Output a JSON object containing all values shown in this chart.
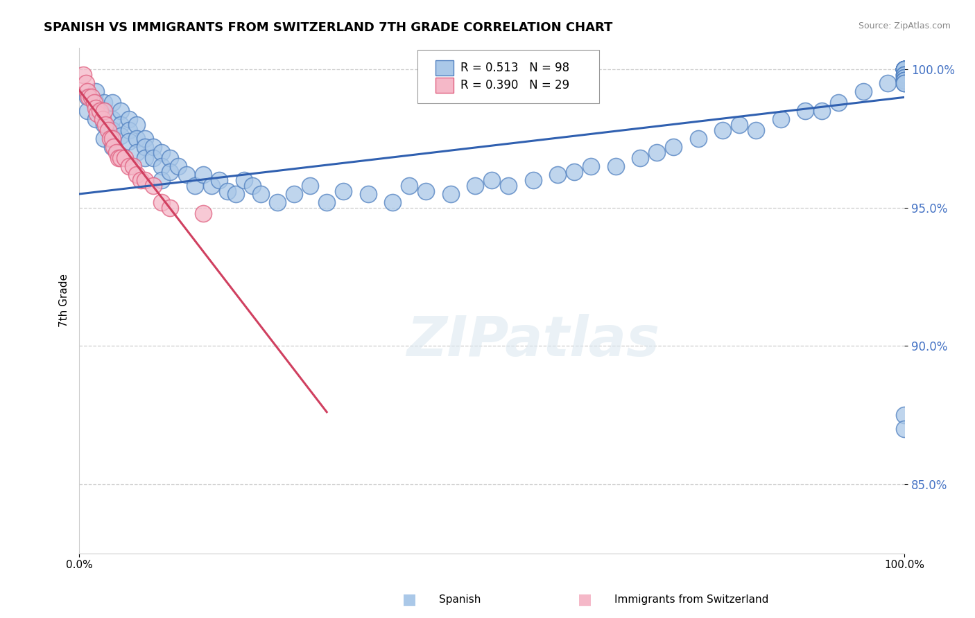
{
  "title": "SPANISH VS IMMIGRANTS FROM SWITZERLAND 7TH GRADE CORRELATION CHART",
  "source": "Source: ZipAtlas.com",
  "legend_label_blue": "Spanish",
  "legend_label_pink": "Immigrants from Switzerland",
  "ylabel": "7th Grade",
  "xlim": [
    0.0,
    1.0
  ],
  "ylim": [
    0.825,
    1.008
  ],
  "yticks": [
    0.85,
    0.9,
    0.95,
    1.0
  ],
  "ytick_labels": [
    "85.0%",
    "90.0%",
    "95.0%",
    "100.0%"
  ],
  "xticks": [
    0.0,
    1.0
  ],
  "xtick_labels": [
    "0.0%",
    "100.0%"
  ],
  "legend_r_blue": "R = 0.513",
  "legend_n_blue": "N = 98",
  "legend_r_pink": "R = 0.390",
  "legend_n_pink": "N = 29",
  "blue_face_color": "#aac8e8",
  "pink_face_color": "#f5b8c8",
  "blue_edge_color": "#5080c0",
  "pink_edge_color": "#e06080",
  "blue_line_color": "#3060b0",
  "pink_line_color": "#d04060",
  "watermark_text": "ZIPatlas",
  "blue_scatter_x": [
    0.01,
    0.01,
    0.02,
    0.02,
    0.02,
    0.03,
    0.03,
    0.03,
    0.03,
    0.04,
    0.04,
    0.04,
    0.04,
    0.05,
    0.05,
    0.05,
    0.06,
    0.06,
    0.06,
    0.07,
    0.07,
    0.07,
    0.08,
    0.08,
    0.08,
    0.09,
    0.09,
    0.1,
    0.1,
    0.1,
    0.11,
    0.11,
    0.12,
    0.13,
    0.14,
    0.15,
    0.16,
    0.17,
    0.18,
    0.19,
    0.2,
    0.21,
    0.22,
    0.24,
    0.26,
    0.28,
    0.3,
    0.32,
    0.35,
    0.38,
    0.4,
    0.42,
    0.45,
    0.48,
    0.5,
    0.52,
    0.55,
    0.58,
    0.6,
    0.62,
    0.65,
    0.68,
    0.7,
    0.72,
    0.75,
    0.78,
    0.8,
    0.82,
    0.85,
    0.88,
    0.9,
    0.92,
    0.95,
    0.98,
    1.0,
    1.0,
    1.0,
    1.0,
    1.0,
    1.0,
    1.0,
    1.0,
    1.0,
    1.0,
    1.0,
    1.0,
    1.0,
    1.0,
    1.0,
    1.0,
    1.0,
    1.0,
    1.0,
    1.0,
    1.0,
    1.0,
    1.0,
    1.0
  ],
  "blue_scatter_y": [
    0.99,
    0.985,
    0.992,
    0.988,
    0.982,
    0.988,
    0.985,
    0.98,
    0.975,
    0.988,
    0.982,
    0.978,
    0.972,
    0.985,
    0.98,
    0.976,
    0.982,
    0.978,
    0.974,
    0.98,
    0.975,
    0.97,
    0.975,
    0.972,
    0.968,
    0.972,
    0.968,
    0.97,
    0.965,
    0.96,
    0.968,
    0.963,
    0.965,
    0.962,
    0.958,
    0.962,
    0.958,
    0.96,
    0.956,
    0.955,
    0.96,
    0.958,
    0.955,
    0.952,
    0.955,
    0.958,
    0.952,
    0.956,
    0.955,
    0.952,
    0.958,
    0.956,
    0.955,
    0.958,
    0.96,
    0.958,
    0.96,
    0.962,
    0.963,
    0.965,
    0.965,
    0.968,
    0.97,
    0.972,
    0.975,
    0.978,
    0.98,
    0.978,
    0.982,
    0.985,
    0.985,
    0.988,
    0.992,
    0.995,
    1.0,
    1.0,
    1.0,
    1.0,
    1.0,
    1.0,
    1.0,
    1.0,
    1.0,
    1.0,
    1.0,
    1.0,
    0.998,
    0.998,
    0.998,
    0.997,
    0.997,
    0.996,
    0.996,
    0.996,
    0.995,
    0.995,
    0.875,
    0.87
  ],
  "pink_scatter_x": [
    0.005,
    0.008,
    0.01,
    0.012,
    0.015,
    0.018,
    0.02,
    0.022,
    0.025,
    0.028,
    0.03,
    0.032,
    0.035,
    0.038,
    0.04,
    0.042,
    0.045,
    0.048,
    0.05,
    0.055,
    0.06,
    0.065,
    0.07,
    0.075,
    0.08,
    0.09,
    0.1,
    0.11,
    0.15
  ],
  "pink_scatter_y": [
    0.998,
    0.995,
    0.992,
    0.99,
    0.99,
    0.988,
    0.986,
    0.984,
    0.985,
    0.982,
    0.985,
    0.98,
    0.978,
    0.975,
    0.975,
    0.972,
    0.97,
    0.968,
    0.968,
    0.968,
    0.965,
    0.965,
    0.962,
    0.96,
    0.96,
    0.958,
    0.952,
    0.95,
    0.948
  ]
}
